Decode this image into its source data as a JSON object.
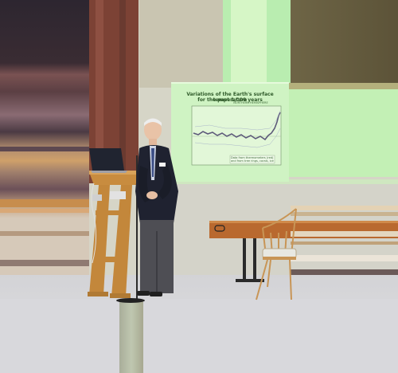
{
  "slide": {
    "title_line1": "Variations of the Earth's surface temperature",
    "title_line2": "for the past 1,000 years",
    "graph_caption": "NORTHERN HEMISPHERE",
    "legend_text": "Data from thermometers (red) and from tree rings, corals, ice cores and historical records (blue)."
  },
  "colors": {
    "slide_bg": "#cff3c3",
    "wall": "#d6d5c7",
    "floor": "#d9d9db",
    "podium_wood": "#c88c3f",
    "brick": "#7c4235",
    "suit": "#1f2230"
  }
}
